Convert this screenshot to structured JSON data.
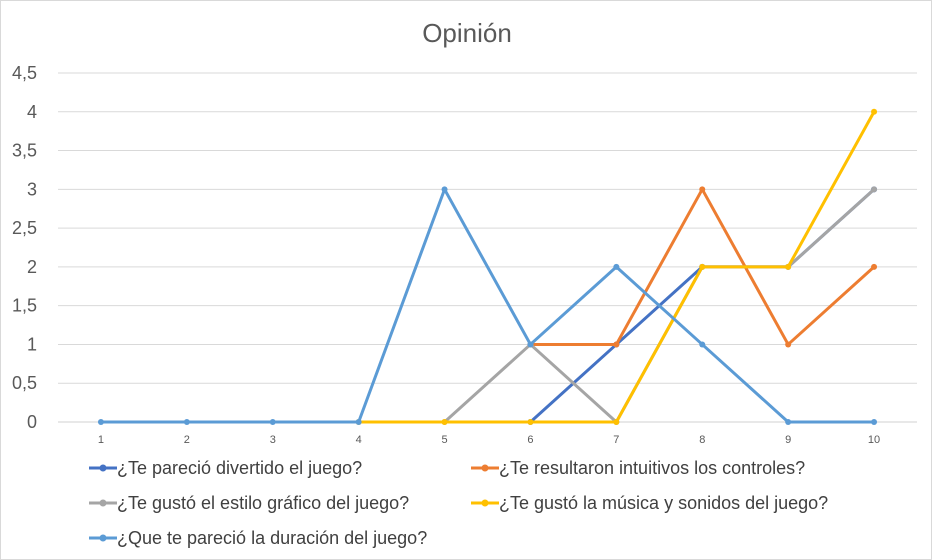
{
  "chart_data": {
    "type": "line",
    "title": "Opinión",
    "xlabel": "",
    "ylabel": "",
    "x": [
      1,
      2,
      3,
      4,
      5,
      6,
      7,
      8,
      9,
      10
    ],
    "ylim": [
      0,
      4.5
    ],
    "yticks": [
      "0",
      "0,5",
      "1",
      "1,5",
      "2",
      "2,5",
      "3",
      "3,5",
      "4",
      "4,5"
    ],
    "grid": true,
    "legend_position": "bottom",
    "series": [
      {
        "name": "¿Te pareció divertido el juego?",
        "color": "#4472C4",
        "values": [
          null,
          null,
          null,
          null,
          null,
          0,
          1,
          2,
          2,
          3
        ]
      },
      {
        "name": "¿Te resultaron intuitivos los controles?",
        "color": "#ED7D31",
        "values": [
          null,
          null,
          null,
          null,
          null,
          1,
          1,
          3,
          1,
          2
        ]
      },
      {
        "name": "¿Te gustó el estilo gráfico del juego?",
        "color": "#A5A5A5",
        "values": [
          null,
          null,
          null,
          null,
          0,
          1,
          0,
          2,
          2,
          3
        ]
      },
      {
        "name": "¿Te gustó la música y sonidos del juego?",
        "color": "#FFC000",
        "values": [
          null,
          null,
          null,
          0,
          0,
          0,
          0,
          2,
          2,
          4
        ]
      },
      {
        "name": "¿Que te pareció la duración del juego?",
        "color": "#5B9BD5",
        "values": [
          0,
          0,
          0,
          0,
          3,
          1,
          2,
          1,
          0,
          0
        ]
      }
    ]
  }
}
